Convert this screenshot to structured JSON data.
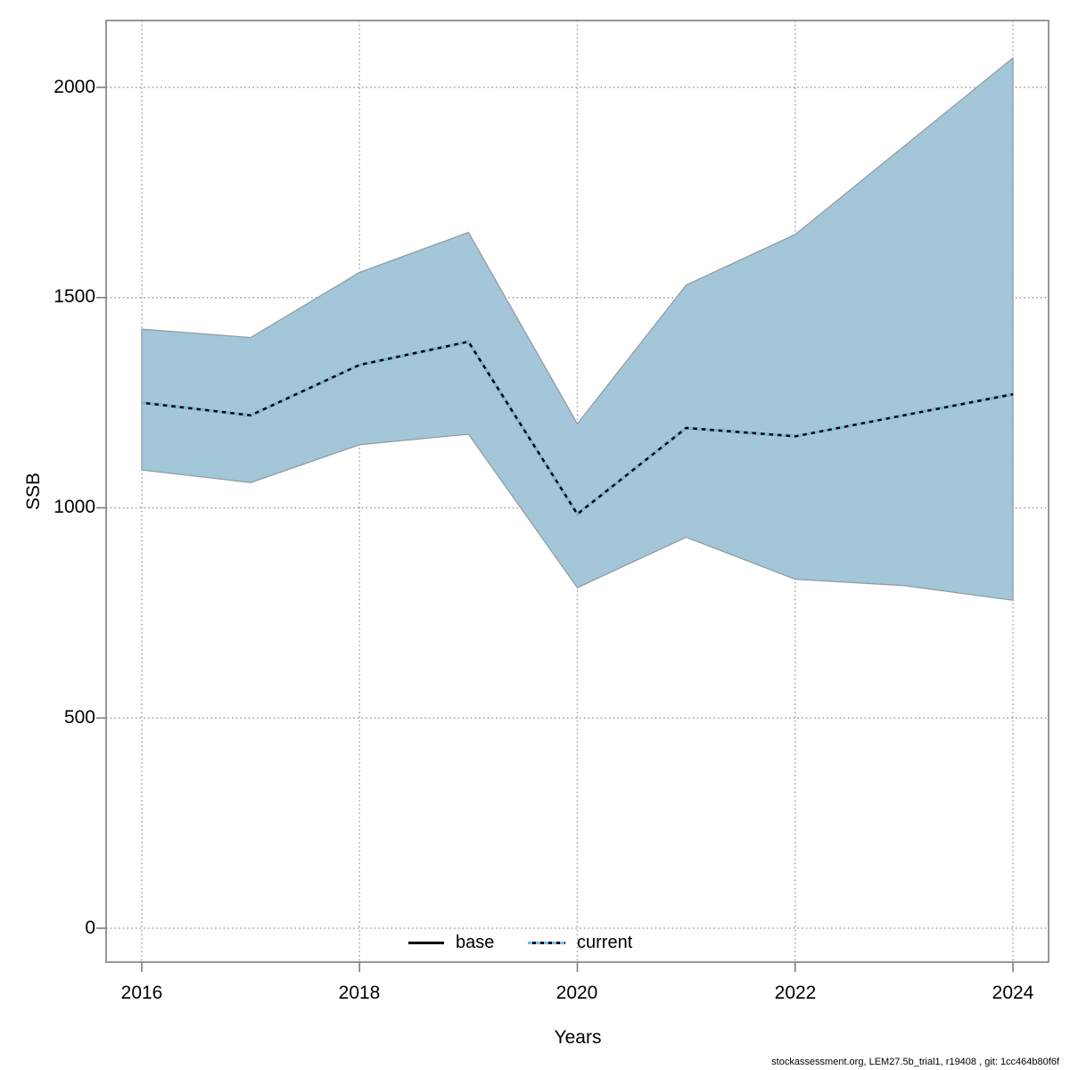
{
  "chart_data": {
    "type": "line",
    "title": "",
    "xlabel": "Years",
    "ylabel": "SSB",
    "x": [
      2016,
      2017,
      2018,
      2019,
      2020,
      2021,
      2022,
      2023,
      2024
    ],
    "series": [
      {
        "name": "base",
        "style": "solid",
        "color": "#000000",
        "values": [
          1250,
          1220,
          1340,
          1395,
          985,
          1190,
          1170,
          1220,
          1270
        ]
      },
      {
        "name": "current",
        "style": "dotted",
        "color": "#7cbfe4",
        "values": [
          1250,
          1220,
          1340,
          1395,
          985,
          1190,
          1170,
          1220,
          1270
        ]
      }
    ],
    "ribbon": {
      "series": "current",
      "lower": [
        1090,
        1060,
        1150,
        1175,
        810,
        930,
        830,
        815,
        780
      ],
      "upper": [
        1425,
        1405,
        1560,
        1655,
        1200,
        1530,
        1650,
        1860,
        2070
      ],
      "fill": "#a3c6d8",
      "edge": "#8e9aa3"
    },
    "xlim": [
      2016,
      2024
    ],
    "ylim": [
      0,
      2000
    ],
    "x_ticks": [
      2016,
      2018,
      2020,
      2022,
      2024
    ],
    "y_ticks": [
      0,
      500,
      1000,
      1500,
      2000
    ],
    "grid": "dotted",
    "grid_color": "#9a9a9a",
    "box_color": "#7f7f7f",
    "legend_position": "bottom-center-inside"
  },
  "legend": {
    "items": [
      {
        "label": "base"
      },
      {
        "label": "current"
      }
    ]
  },
  "footer": {
    "text": "stockassessment.org, LEM27.5b_trial1, r19408 , git: 1cc464b80f6f"
  }
}
